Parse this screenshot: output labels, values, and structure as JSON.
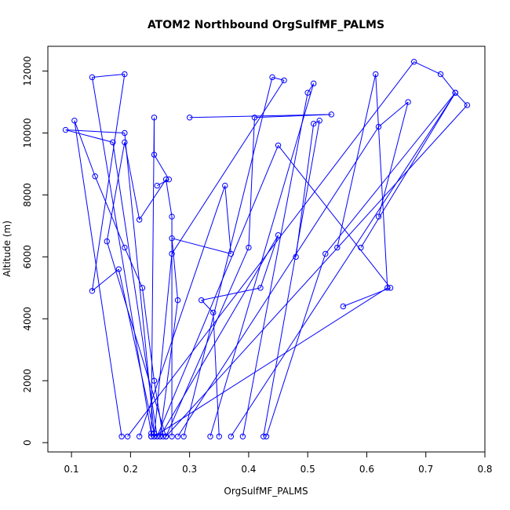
{
  "chart_data": {
    "type": "line",
    "title": "ATOM2 Northbound OrgSulfMF_PALMS",
    "xlabel": "OrgSulfMF_PALMS",
    "ylabel": "Altitude (m)",
    "xlim": [
      0.06,
      0.8
    ],
    "ylim": [
      -300,
      12800
    ],
    "x_ticks": [
      0.1,
      0.2,
      0.3,
      0.4,
      0.5,
      0.6,
      0.7,
      0.8
    ],
    "x_tick_labels": [
      "0.1",
      "0.2",
      "0.3",
      "0.4",
      "0.5",
      "0.6",
      "0.7",
      "0.8"
    ],
    "y_ticks": [
      0,
      2000,
      4000,
      6000,
      8000,
      10000,
      12000
    ],
    "y_tick_labels": [
      "0",
      "2000",
      "4000",
      "6000",
      "8000",
      "10000",
      "12000"
    ],
    "grid": false,
    "series_color": "#0000ff",
    "series": [
      {
        "x": [
          0.185,
          0.105,
          0.14,
          0.19,
          0.22,
          0.24,
          0.255
        ],
        "y": [
          200,
          10400,
          8600,
          6300,
          5000,
          2000,
          200
        ]
      },
      {
        "x": [
          0.235,
          0.135,
          0.19,
          0.135,
          0.18,
          0.24,
          0.235
        ],
        "y": [
          300,
          11800,
          11900,
          4900,
          5600,
          300,
          200
        ]
      },
      {
        "x": [
          0.26,
          0.16,
          0.19,
          0.215,
          0.26,
          0.27,
          0.27
        ],
        "y": [
          200,
          6500,
          9700,
          7200,
          8500,
          7300,
          200
        ]
      },
      {
        "x": [
          0.25,
          0.45,
          0.42,
          0.32,
          0.34,
          0.35
        ],
        "y": [
          200,
          6700,
          5000,
          4600,
          4200,
          200
        ]
      },
      {
        "x": [
          0.245,
          0.17,
          0.09,
          0.19,
          0.24
        ],
        "y": [
          200,
          9700,
          10100,
          10000,
          300
        ]
      },
      {
        "x": [
          0.29,
          0.44,
          0.46,
          0.27,
          0.24
        ],
        "y": [
          200,
          11800,
          11700,
          6100,
          200
        ]
      },
      {
        "x": [
          0.215,
          0.36,
          0.37,
          0.27,
          0.28,
          0.25
        ],
        "y": [
          200,
          8300,
          6100,
          6600,
          4600,
          200
        ]
      },
      {
        "x": [
          0.335,
          0.51,
          0.5,
          0.39
        ],
        "y": [
          200,
          11600,
          11300,
          200
        ]
      },
      {
        "x": [
          0.37,
          0.75,
          0.53,
          0.43
        ],
        "y": [
          200,
          11300,
          6100,
          200
        ]
      },
      {
        "x": [
          0.24,
          0.635,
          0.615,
          0.55
        ],
        "y": [
          200,
          5000,
          11900,
          6300
        ]
      },
      {
        "x": [
          0.195,
          0.68,
          0.725,
          0.75
        ],
        "y": [
          200,
          12300,
          11900,
          11300
        ]
      },
      {
        "x": [
          0.235,
          0.24,
          0.24,
          0.265,
          0.245
        ],
        "y": [
          200,
          10500,
          9300,
          8500,
          8300
        ]
      },
      {
        "x": [
          0.425,
          0.52,
          0.51,
          0.48
        ],
        "y": [
          200,
          10400,
          10300,
          6000
        ]
      },
      {
        "x": [
          0.26,
          0.4,
          0.41,
          0.54,
          0.3
        ],
        "y": [
          200,
          6300,
          10500,
          10600,
          10500
        ]
      },
      {
        "x": [
          0.245,
          0.45,
          0.64,
          0.56
        ],
        "y": [
          200,
          9600,
          5000,
          4400
        ]
      },
      {
        "x": [
          0.26,
          0.77,
          0.75,
          0.59
        ],
        "y": [
          200,
          10900,
          11300,
          6300
        ]
      },
      {
        "x": [
          0.28,
          0.62,
          0.67,
          0.62
        ],
        "y": [
          200,
          10200,
          11000,
          7300
        ]
      }
    ]
  }
}
